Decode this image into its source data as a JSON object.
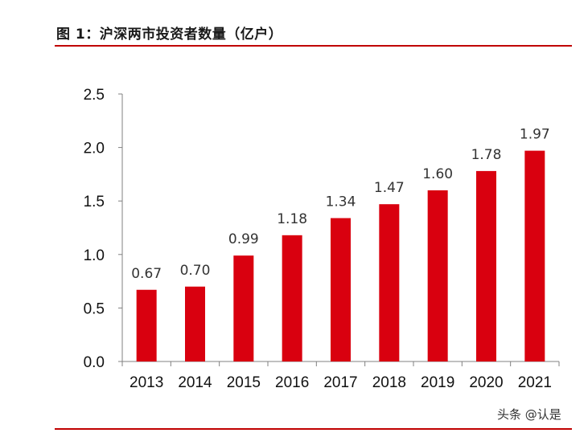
{
  "figure": {
    "title": "图 1：沪深两市投资者数量（亿户）",
    "watermark": "头条 @认是"
  },
  "colors": {
    "bar": "#d9000f",
    "rule": "#c00000",
    "axis": "#808080"
  },
  "chart_data": {
    "type": "bar",
    "title": "图 1：沪深两市投资者数量（亿户）",
    "xlabel": "",
    "ylabel": "",
    "categories": [
      "2013",
      "2014",
      "2015",
      "2016",
      "2017",
      "2018",
      "2019",
      "2020",
      "2021"
    ],
    "values": [
      0.67,
      0.7,
      0.99,
      1.18,
      1.34,
      1.47,
      1.6,
      1.78,
      1.97
    ],
    "data_labels": [
      "0.67",
      "0.70",
      "0.99",
      "1.18",
      "1.34",
      "1.47",
      "1.60",
      "1.78",
      "1.97"
    ],
    "ylim": [
      0,
      2.5
    ],
    "yticks": [
      "0.0",
      "0.5",
      "1.0",
      "1.5",
      "2.0",
      "2.5"
    ],
    "grid": false,
    "legend": "none"
  }
}
